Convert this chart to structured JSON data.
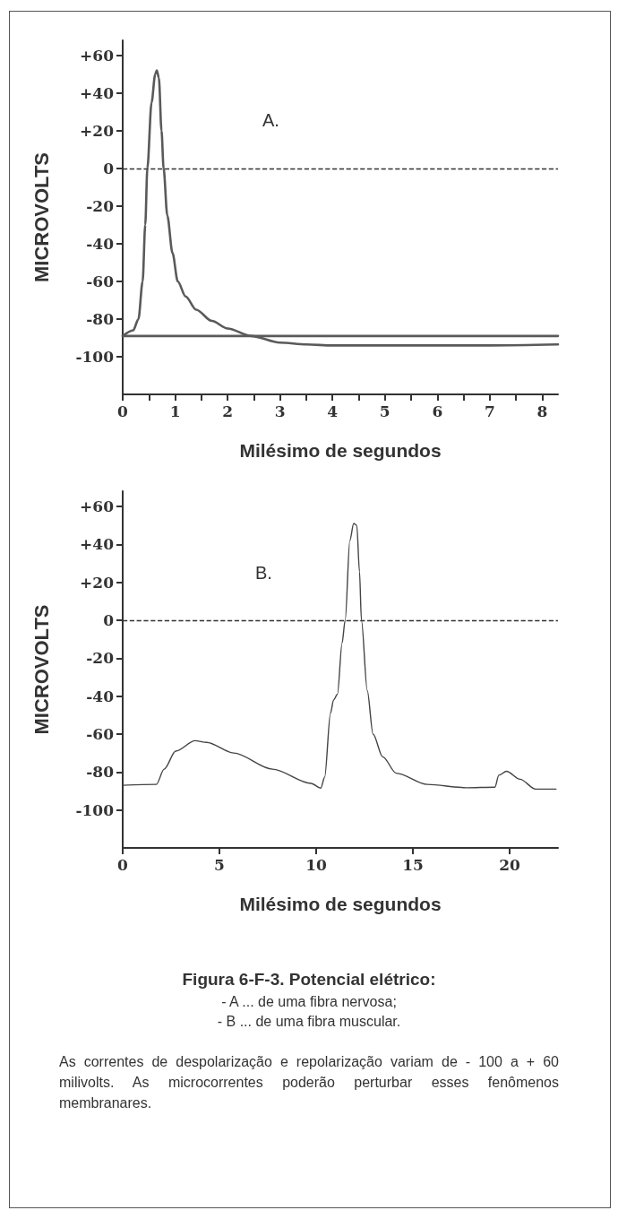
{
  "chart_data": [
    {
      "type": "line",
      "xlabel": "Milésimo de segundos",
      "ylabel": "MICROVOLTS",
      "annotations": [
        "A."
      ],
      "xlim": [
        0,
        8.3
      ],
      "xticks": [
        0,
        {
          "value": 0.5,
          "label": null
        },
        1,
        {
          "value": 1.5,
          "label": null
        },
        2,
        {
          "value": 2.5,
          "label": null
        },
        3,
        {
          "value": 3.5,
          "label": null
        },
        4,
        {
          "value": 4.5,
          "label": null
        },
        5,
        {
          "value": 5.5,
          "label": null
        },
        6,
        {
          "value": 6.5,
          "label": null
        },
        7,
        {
          "value": 7.5,
          "label": null
        },
        8
      ],
      "ylim": [
        -120,
        68
      ],
      "yticks": [
        {
          "value": 60,
          "label": "+60"
        },
        {
          "value": 40,
          "label": "+40"
        },
        {
          "value": 20,
          "label": "+20"
        },
        0,
        -20,
        -40,
        -60,
        -80,
        -100
      ],
      "series": [
        {
          "color": "#5a5a5a",
          "x": [
            0,
            8.3
          ],
          "values": [
            -89,
            -89
          ]
        },
        {
          "color": "#5a5a5a",
          "x": [
            0,
            0.2,
            0.3,
            0.38,
            0.43,
            0.47,
            0.55,
            0.62,
            0.65,
            0.69,
            0.74,
            0.78,
            0.85,
            0.95,
            1.05,
            1.2,
            1.4,
            1.7,
            2.0,
            2.45,
            3.0,
            3.5,
            4,
            5,
            6,
            7,
            8.3
          ],
          "values": [
            -89,
            -86,
            -80,
            -60,
            -30,
            0,
            35,
            50,
            52,
            48,
            20,
            0,
            -25,
            -45,
            -60,
            -68,
            -75,
            -81,
            -85,
            -89,
            -92.5,
            -93.5,
            -94,
            -94,
            -94,
            -94,
            -93.5
          ]
        }
      ],
      "ref_lines": [
        {
          "axis": "y",
          "value": 0,
          "line_style": "dashed",
          "color": "#333333"
        }
      ],
      "grid": false,
      "marker": "none",
      "line_style": "solid"
    },
    {
      "type": "line",
      "xlabel": "Milésimo de segundos",
      "ylabel": "MICROVOLTS",
      "title": "Figura 6-F-3. Potencial elétrico:",
      "annotations": [
        "B.",
        "- A ... de uma fibra nervosa;",
        "- B ... de uma fibra muscular.",
        "As correntes de despolarização e repolarização variam de - 100 a + 60 milivolts. As microcorrentes poderão perturbar esses fenômenos membranares."
      ],
      "xlim": [
        0,
        22.5
      ],
      "xticks": [
        0,
        5,
        10,
        15,
        20
      ],
      "ylim": [
        -120,
        68
      ],
      "yticks": [
        {
          "value": 60,
          "label": "+60"
        },
        {
          "value": 40,
          "label": "+40"
        },
        {
          "value": 20,
          "label": "+20"
        },
        0,
        -20,
        -40,
        -60,
        -80,
        -100
      ],
      "series": [
        {
          "color": "#444444",
          "x": [
            0,
            1.74,
            2.14,
            2.74,
            3.74,
            4.34,
            5.74,
            7.74,
            9.74,
            10.24,
            10.44,
            10.74,
            10.9,
            11.1,
            11.34,
            11.5,
            11.74,
            11.94,
            12.1,
            12.24,
            12.34,
            12.64,
            12.94,
            13.44,
            14.14,
            15.74,
            17.74,
            19.24,
            19.44,
            19.84,
            20.54,
            21.34,
            22.4
          ],
          "values": [
            -87,
            -86.5,
            -78.5,
            -69,
            -63.5,
            -64.4,
            -70,
            -78.5,
            -86,
            -88.5,
            -82.7,
            -49,
            -42,
            -39,
            -12,
            0,
            42,
            51,
            50,
            25.6,
            0,
            -37,
            -60,
            -72,
            -80.6,
            -86.5,
            -88.3,
            -88,
            -81.7,
            -79.6,
            -83.8,
            -89,
            -89
          ]
        }
      ],
      "ref_lines": [
        {
          "axis": "y",
          "value": 0,
          "line_style": "dashed",
          "color": "#333333"
        }
      ],
      "grid": false,
      "marker": "none",
      "line_style": "solid"
    }
  ]
}
